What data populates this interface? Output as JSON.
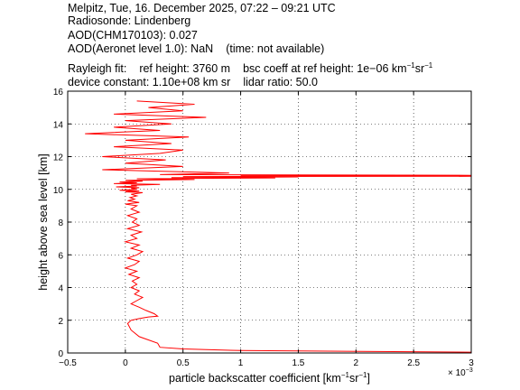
{
  "header": {
    "line1": "Melpitz, Tue, 16. December 2025, 07:22 – 09:21 UTC",
    "line2": "Radiosonde: Lindenberg",
    "line3": "AOD(CHM170103): 0.027",
    "line4a": "AOD(Aeronet level 1.0): NaN",
    "line4b": "(time: not available)",
    "rayleigh_label": "Rayleigh fit:",
    "ref_height": "ref height: 3760 m",
    "bsc_coeff_a": "bsc coeff at ref height: 1e−06 km",
    "bsc_coeff_b": "sr",
    "device_constant": "device constant: 1.10e+08 km sr",
    "lidar_ratio": "lidar ratio: 50.0"
  },
  "chart_data": {
    "type": "line",
    "xlabel_main": "particle backscatter coefficient [km",
    "xlabel_mid": "sr",
    "xlabel_end": "]",
    "ylabel": "height above sea level [km]",
    "x_exponent_label": "× 10",
    "x_exponent_power": "−3",
    "xlim": [
      -0.5,
      3
    ],
    "ylim": [
      0,
      16
    ],
    "xticks": [
      "−0.5",
      "0",
      "0.5",
      "1",
      "1.5",
      "2",
      "2.5",
      "3"
    ],
    "xtick_values": [
      -0.5,
      0,
      0.5,
      1,
      1.5,
      2,
      2.5,
      3
    ],
    "yticks": [
      "0",
      "2",
      "4",
      "6",
      "8",
      "10",
      "12",
      "14",
      "16"
    ],
    "ytick_values": [
      0,
      2,
      4,
      6,
      8,
      10,
      12,
      14,
      16
    ],
    "grid": true,
    "line_color": "#ff0000",
    "series": [
      {
        "x": [
          3.0,
          1.0,
          0.5,
          0.3,
          0.28,
          0.12,
          0.05,
          0.02,
          0.05,
          0.12,
          0.2,
          0.28,
          0.25,
          0.18,
          0.12,
          0.05,
          0.1,
          0.15,
          0.08,
          0.12,
          0.05,
          0.1,
          0.06,
          0.12,
          0.03,
          0.1,
          0.0,
          0.08,
          0.12,
          0.02,
          0.1,
          0.15,
          0.05,
          0.12,
          0.0,
          0.1,
          0.05,
          0.14,
          0.02,
          0.12,
          0.06,
          0.1,
          0.02,
          0.12,
          0.05,
          0.1,
          0.0,
          0.12,
          0.02,
          0.08,
          0.04,
          0.1,
          0.05,
          0.15,
          0.0,
          0.12,
          -0.05,
          0.1,
          0.05,
          0.12,
          -0.08,
          0.1,
          0.05,
          0.3,
          -0.1,
          0.1,
          -0.05,
          0.15,
          0.0,
          0.6,
          0.1,
          1.3,
          0.4,
          1.2,
          1.5,
          0.5,
          3.0,
          2.0,
          1.0,
          3.0,
          0.3,
          0.9,
          -0.2,
          0.5,
          0.0,
          0.35,
          -0.2,
          0.3,
          0.5,
          -0.1,
          0.4,
          0.0,
          0.55,
          -0.35,
          0.3,
          -0.1,
          0.4,
          0.0,
          0.7,
          -0.1,
          0.5,
          0.2,
          0.6,
          0.1
        ],
        "y": [
          0.05,
          0.15,
          0.25,
          0.35,
          0.6,
          1.0,
          1.4,
          1.8,
          2.0,
          2.1,
          2.2,
          2.25,
          2.4,
          2.6,
          2.8,
          3.0,
          3.2,
          3.4,
          3.6,
          3.8,
          4.0,
          4.2,
          4.4,
          4.6,
          4.8,
          5.0,
          5.2,
          5.4,
          5.6,
          5.8,
          6.0,
          6.2,
          6.4,
          6.6,
          6.8,
          7.0,
          7.2,
          7.4,
          7.6,
          7.8,
          8.0,
          8.2,
          8.4,
          8.6,
          8.8,
          9.0,
          9.1,
          9.2,
          9.3,
          9.4,
          9.5,
          9.6,
          9.7,
          9.8,
          9.85,
          9.9,
          9.95,
          10.0,
          10.05,
          10.1,
          10.15,
          10.2,
          10.25,
          10.3,
          10.35,
          10.4,
          10.45,
          10.5,
          10.55,
          10.6,
          10.65,
          10.7,
          10.72,
          10.74,
          10.76,
          10.78,
          10.8,
          10.82,
          10.84,
          10.86,
          10.9,
          11.0,
          11.2,
          11.4,
          11.6,
          11.8,
          12.0,
          12.2,
          12.4,
          12.6,
          12.8,
          13.0,
          13.2,
          13.4,
          13.6,
          13.8,
          14.0,
          14.2,
          14.4,
          14.6,
          14.8,
          15.0,
          15.2,
          15.4
        ]
      }
    ]
  }
}
